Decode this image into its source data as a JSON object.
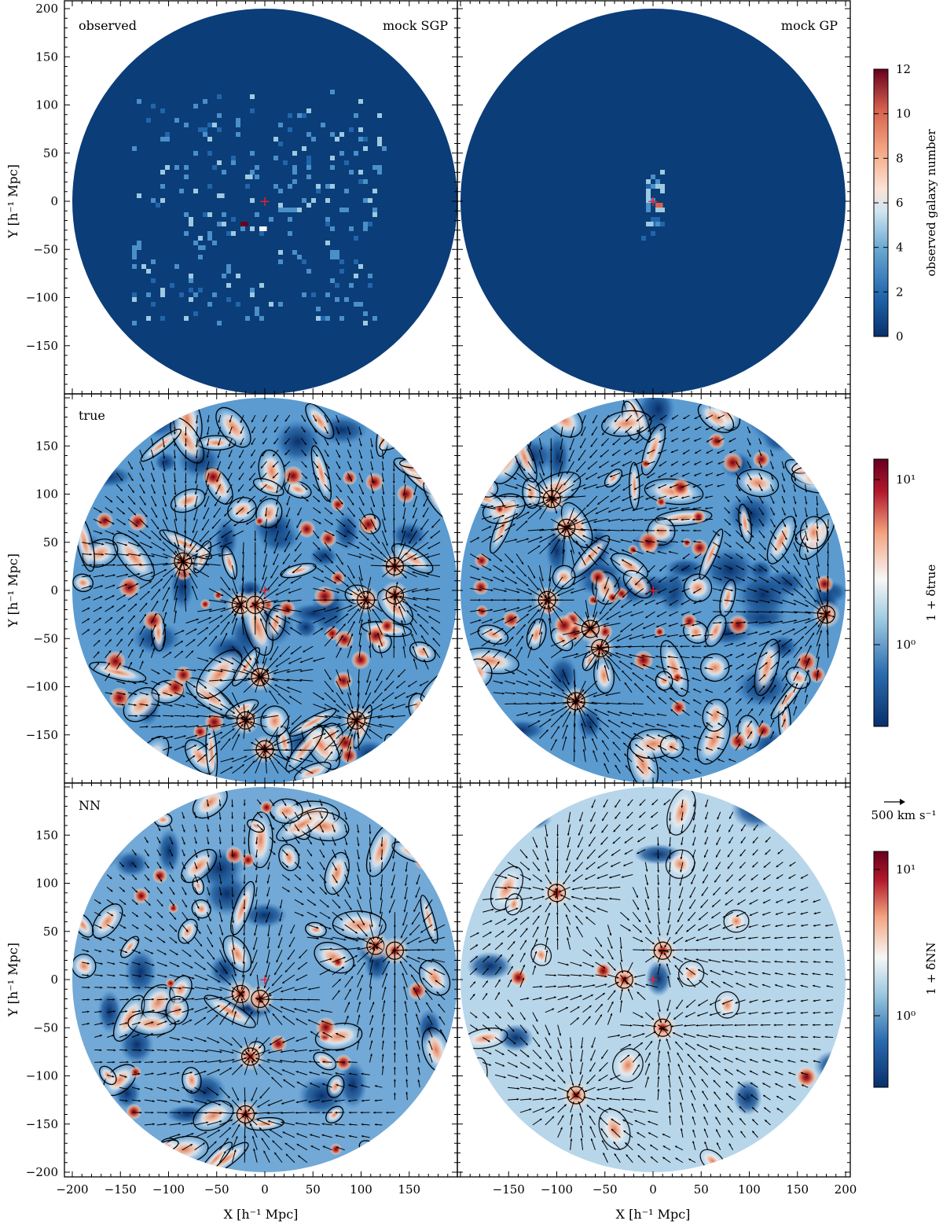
{
  "figure": {
    "panel_labels": {
      "observed": "observed",
      "mock_sgp": "mock SGP",
      "mock_gp": "mock GP",
      "true": "true",
      "nn": "NN"
    },
    "x_axis_label": "X [h⁻¹ Mpc]",
    "y_axis_label": "Y [h⁻¹ Mpc]",
    "colorbars": {
      "observed": {
        "label": "observed galaxy number",
        "range": [
          0,
          12
        ],
        "ticks": [
          "0",
          "2",
          "4",
          "6",
          "8",
          "10",
          "12"
        ]
      },
      "true": {
        "label": "1 + δtrue",
        "ticks": [
          "10⁰",
          "10¹"
        ]
      },
      "nn": {
        "label": "1 + δ̂NN",
        "ticks": [
          "10⁰",
          "10¹"
        ]
      }
    },
    "arrow_key": "500 km s⁻¹",
    "colors": {
      "deep_blue": "#08306b",
      "mid_blue": "#2b6cb0",
      "light_blue": "#9ecae1",
      "white": "#f7f7f7",
      "salmon": "#f4a582",
      "red": "#b2182b",
      "dark_red": "#67001f",
      "observer_marker": "#e8202a"
    }
  },
  "chart_data": [
    {
      "type": "heatmap",
      "panel": "top-left",
      "annotations": [
        "observed",
        "mock SGP"
      ],
      "xlim": [
        -200,
        200
      ],
      "ylim": [
        -200,
        200
      ],
      "xticks": [
        -150,
        -100,
        -50,
        0,
        50,
        100,
        150
      ],
      "yticks": [
        -150,
        -100,
        -50,
        0,
        50,
        100,
        150,
        200
      ],
      "ylabel": "Y [h⁻¹ Mpc]",
      "colorbar": "observed galaxy number",
      "clim": [
        0,
        12
      ],
      "hotspots": [
        {
          "x": -25,
          "y": -20,
          "value": 12
        },
        {
          "x": -5,
          "y": -28,
          "value": 6
        },
        {
          "x": -50,
          "y": 10,
          "value": 5
        },
        {
          "x": -20,
          "y": 30,
          "value": 4
        },
        {
          "x": 20,
          "y": -5,
          "value": 3
        },
        {
          "x": -70,
          "y": -45,
          "value": 3
        }
      ]
    },
    {
      "type": "heatmap",
      "panel": "top-right",
      "annotations": [
        "mock GP"
      ],
      "xlim": [
        -200,
        200
      ],
      "ylim": [
        -200,
        200
      ],
      "colorbar": "observed galaxy number",
      "clim": [
        0,
        12
      ],
      "hotspots": [
        {
          "x": 0,
          "y": 0,
          "value": 8
        },
        {
          "x": 0,
          "y": 20,
          "value": 5
        },
        {
          "x": -5,
          "y": -20,
          "value": 4
        }
      ]
    },
    {
      "type": "heatmap",
      "panel": "middle-left",
      "annotations": [
        "true"
      ],
      "ylabel": "Y [h⁻¹ Mpc]",
      "colorbar": "1 + δtrue",
      "scale": "log",
      "peaks": [
        {
          "x": -25,
          "y": -15
        },
        {
          "x": -10,
          "y": -15
        },
        {
          "x": 105,
          "y": -10
        },
        {
          "x": 135,
          "y": -5
        },
        {
          "x": 135,
          "y": 25
        },
        {
          "x": -20,
          "y": -135
        },
        {
          "x": 0,
          "y": -165
        },
        {
          "x": -5,
          "y": -90
        },
        {
          "x": 95,
          "y": -135
        },
        {
          "x": -85,
          "y": 30
        }
      ]
    },
    {
      "type": "heatmap",
      "panel": "middle-right",
      "colorbar": "1 + δtrue",
      "scale": "log",
      "peaks": [
        {
          "x": -105,
          "y": 95
        },
        {
          "x": -90,
          "y": 65
        },
        {
          "x": -65,
          "y": -40
        },
        {
          "x": -55,
          "y": -60
        },
        {
          "x": -110,
          "y": -10
        },
        {
          "x": -80,
          "y": -115
        },
        {
          "x": 180,
          "y": -25
        }
      ]
    },
    {
      "type": "heatmap",
      "panel": "bottom-left",
      "annotations": [
        "NN"
      ],
      "ylabel": "Y [h⁻¹ Mpc]",
      "xlabel": "X [h⁻¹ Mpc]",
      "xticks": [
        -200,
        -150,
        -100,
        -50,
        0,
        50,
        100,
        150
      ],
      "yticks": [
        -200,
        -150,
        -100,
        -50,
        0,
        50,
        100,
        150
      ],
      "colorbar": "1 + δ̂NN",
      "scale": "log",
      "peaks": [
        {
          "x": -25,
          "y": -15
        },
        {
          "x": -5,
          "y": -20
        },
        {
          "x": 115,
          "y": 35
        },
        {
          "x": 135,
          "y": 30
        },
        {
          "x": -20,
          "y": -140
        },
        {
          "x": -15,
          "y": -80
        }
      ]
    },
    {
      "type": "heatmap",
      "panel": "bottom-right",
      "xlabel": "X [h⁻¹ Mpc]",
      "xticks": [
        -150,
        -100,
        -50,
        0,
        50,
        100,
        150,
        200
      ],
      "colorbar": "1 + δ̂NN",
      "scale": "log",
      "peaks": [
        {
          "x": -100,
          "y": 90
        },
        {
          "x": 10,
          "y": 30
        },
        {
          "x": -30,
          "y": 0
        },
        {
          "x": 10,
          "y": -50
        },
        {
          "x": -80,
          "y": -120
        }
      ]
    }
  ]
}
